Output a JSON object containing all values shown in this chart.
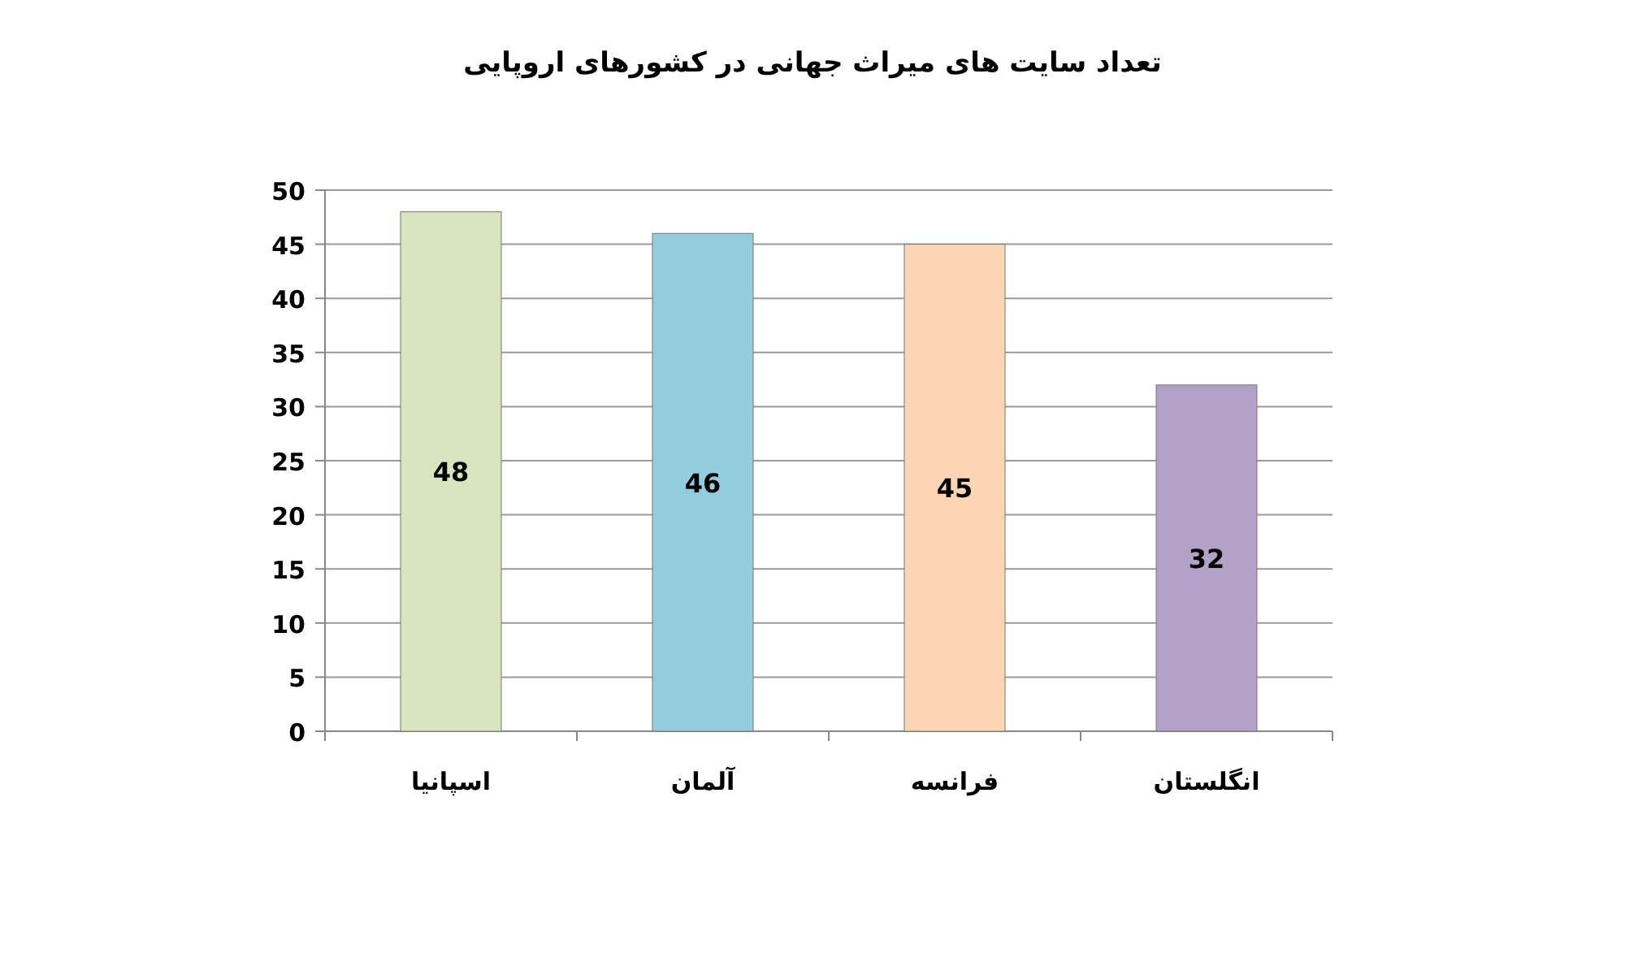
{
  "chart_data": {
    "type": "bar",
    "title": "تعداد سایت های میراث جهانی در کشورهای اروپایی",
    "categories": [
      "اسپانیا",
      "آلمان",
      "فرانسه",
      "انگلستان"
    ],
    "values": [
      48,
      46,
      45,
      32
    ],
    "colors": [
      "#d7e4bd",
      "#93cddd",
      "#fcd5b5",
      "#b3a2c7"
    ],
    "ylim": [
      0,
      50
    ],
    "yticks": [
      0,
      5,
      10,
      15,
      20,
      25,
      30,
      35,
      40,
      45,
      50
    ],
    "grid": "y",
    "data_labels": true
  }
}
